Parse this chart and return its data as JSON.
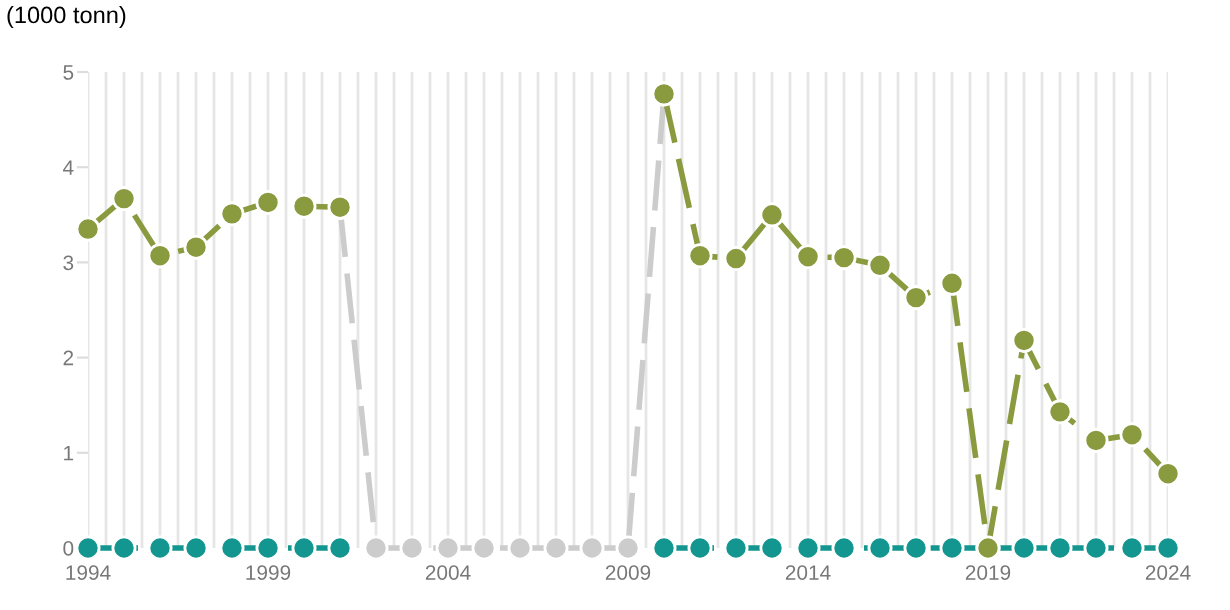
{
  "chart_data": {
    "type": "line",
    "ylabel": "(1000 tonn)",
    "xlim": [
      1994,
      2024
    ],
    "ylim": [
      0,
      5
    ],
    "yticks": [
      0,
      1,
      2,
      3,
      4,
      5
    ],
    "xticks": [
      1994,
      {
        "value": 1994.5,
        "label": null
      },
      {
        "value": 1995,
        "label": null
      },
      {
        "value": 1995.5,
        "label": null
      },
      {
        "value": 1996,
        "label": null
      },
      {
        "value": 1996.5,
        "label": null
      },
      {
        "value": 1997,
        "label": null
      },
      {
        "value": 1997.5,
        "label": null
      },
      {
        "value": 1998,
        "label": null
      },
      {
        "value": 1998.5,
        "label": null
      },
      1999,
      {
        "value": 1999.5,
        "label": null
      },
      {
        "value": 2000,
        "label": null
      },
      {
        "value": 2000.5,
        "label": null
      },
      {
        "value": 2001,
        "label": null
      },
      {
        "value": 2001.5,
        "label": null
      },
      {
        "value": 2002,
        "label": null
      },
      {
        "value": 2002.5,
        "label": null
      },
      {
        "value": 2003,
        "label": null
      },
      {
        "value": 2003.5,
        "label": null
      },
      2004,
      {
        "value": 2004.5,
        "label": null
      },
      {
        "value": 2005,
        "label": null
      },
      {
        "value": 2005.5,
        "label": null
      },
      {
        "value": 2006,
        "label": null
      },
      {
        "value": 2006.5,
        "label": null
      },
      {
        "value": 2007,
        "label": null
      },
      {
        "value": 2007.5,
        "label": null
      },
      {
        "value": 2008,
        "label": null
      },
      {
        "value": 2008.5,
        "label": null
      },
      2009,
      {
        "value": 2009.5,
        "label": null
      },
      {
        "value": 2010,
        "label": null
      },
      {
        "value": 2010.5,
        "label": null
      },
      {
        "value": 2011,
        "label": null
      },
      {
        "value": 2011.5,
        "label": null
      },
      {
        "value": 2012,
        "label": null
      },
      {
        "value": 2012.5,
        "label": null
      },
      {
        "value": 2013,
        "label": null
      },
      {
        "value": 2013.5,
        "label": null
      },
      2014,
      {
        "value": 2014.5,
        "label": null
      },
      {
        "value": 2015,
        "label": null
      },
      {
        "value": 2015.5,
        "label": null
      },
      {
        "value": 2016,
        "label": null
      },
      {
        "value": 2016.5,
        "label": null
      },
      {
        "value": 2017,
        "label": null
      },
      {
        "value": 2017.5,
        "label": null
      },
      {
        "value": 2018,
        "label": null
      },
      {
        "value": 2018.5,
        "label": null
      },
      2019,
      {
        "value": 2019.5,
        "label": null
      },
      {
        "value": 2020,
        "label": null
      },
      {
        "value": 2020.5,
        "label": null
      },
      {
        "value": 2021,
        "label": null
      },
      {
        "value": 2021.5,
        "label": null
      },
      {
        "value": 2022,
        "label": null
      },
      {
        "value": 2022.5,
        "label": null
      },
      {
        "value": 2023,
        "label": null
      },
      {
        "value": 2023.5,
        "label": null
      },
      2024
    ],
    "grid": "x",
    "legend": false,
    "marker": "circle",
    "line_style": "dashed",
    "series": [
      {
        "color": "#cccccc",
        "x": [
          2001,
          2002,
          2003,
          2004,
          2005,
          2006,
          2007,
          2008,
          2009,
          2010
        ],
        "values": [
          3.58,
          0,
          0,
          0,
          0,
          0,
          0,
          0,
          0,
          4.77
        ]
      },
      {
        "color": "#13968f",
        "x": [
          1994,
          1995,
          1996,
          1997,
          1998,
          1999,
          2000,
          2001,
          null,
          2010,
          2011,
          2012,
          2013,
          2014,
          2015,
          2016,
          2017,
          2018,
          2019,
          2020,
          2021,
          2022,
          2023,
          2024
        ],
        "values": [
          0,
          0,
          0,
          0,
          0,
          0,
          0,
          0,
          null,
          0,
          0,
          0,
          0,
          0,
          0,
          0,
          0,
          0,
          0,
          0,
          0,
          0,
          0,
          0
        ]
      },
      {
        "color": "#8a9a3f",
        "x": [
          1994,
          1995,
          1996,
          1997,
          1998,
          1999,
          2000,
          2001,
          null,
          2010,
          2011,
          2012,
          2013,
          2014,
          2015,
          2016,
          2017,
          2018,
          2019,
          2020,
          2021,
          2022,
          2023,
          2024
        ],
        "values": [
          3.35,
          3.67,
          3.07,
          3.16,
          3.51,
          3.63,
          3.59,
          3.58,
          null,
          4.77,
          3.07,
          3.04,
          3.5,
          3.06,
          3.05,
          2.97,
          2.63,
          2.78,
          0,
          2.18,
          1.43,
          1.13,
          1.19,
          0.78
        ]
      }
    ]
  }
}
